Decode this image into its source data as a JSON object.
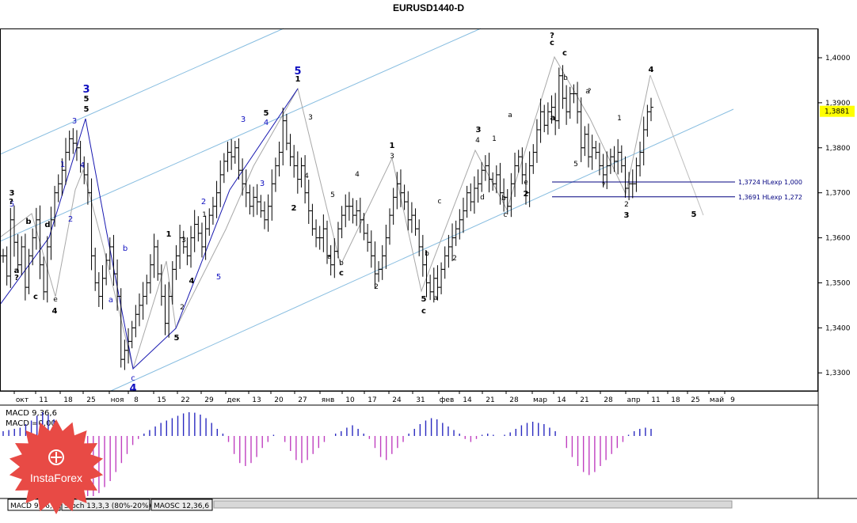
{
  "window": {
    "title": "EURUSD1440-D",
    "tabs": [
      "MACD 9,36,6",
      "Stoch 13,3,3 (80%-20%)",
      "MAOSC 12,36,6"
    ]
  },
  "logo_text": "InstaForex",
  "colors": {
    "bars": "#000000",
    "channel": "#87bde0",
    "wave_path": "#1818b0",
    "forecast": "#bdbdbd",
    "level_line": "#000080",
    "macd_positive": "#2a2ac0",
    "macd_negative": "#c040c0",
    "price_badge": "#ffff00",
    "logo": "#e84a45"
  },
  "chart_data": {
    "type": "ohlc",
    "title": "EURUSD1440-D",
    "ylim": [
      1.326,
      1.4065
    ],
    "y_ticks": [
      "1,4000",
      "1,3900",
      "1,3800",
      "1,3700",
      "1,3600",
      "1,3500",
      "1,3400",
      "1,3300"
    ],
    "x_ticks": [
      "окт",
      "11",
      "18",
      "25",
      "ноя",
      "8",
      "15",
      "22",
      "29",
      "дек",
      "13",
      "20",
      "27",
      "янв",
      "10",
      "17",
      "24",
      "31",
      "фев",
      "14",
      "21",
      "28",
      "мар",
      "14",
      "21",
      "28",
      "апр",
      "11",
      "18",
      "25",
      "май",
      "9"
    ],
    "current_price": "1,3881",
    "levels": [
      {
        "value": 1.3724,
        "label": "1,3724 HLexp 1,000"
      },
      {
        "value": 1.3691,
        "label": "1,3691 HLexp 1,272"
      }
    ],
    "closes": [
      1.356,
      1.3515,
      1.364,
      1.359,
      1.354,
      1.358,
      1.349,
      1.356,
      1.36,
      1.364,
      1.354,
      1.348,
      1.358,
      1.364,
      1.37,
      1.372,
      1.375,
      1.379,
      1.382,
      1.381,
      1.38,
      1.376,
      1.374,
      1.37,
      1.356,
      1.35,
      1.347,
      1.351,
      1.355,
      1.358,
      1.352,
      1.347,
      1.333,
      1.335,
      1.337,
      1.34,
      1.343,
      1.345,
      1.347,
      1.35,
      1.354,
      1.358,
      1.352,
      1.347,
      1.341,
      1.347,
      1.353,
      1.356,
      1.36,
      1.358,
      1.356,
      1.36,
      1.363,
      1.361,
      1.358,
      1.362,
      1.365,
      1.367,
      1.37,
      1.374,
      1.377,
      1.379,
      1.378,
      1.38,
      1.375,
      1.372,
      1.37,
      1.367,
      1.369,
      1.368,
      1.366,
      1.364,
      1.367,
      1.372,
      1.376,
      1.379,
      1.386,
      1.381,
      1.378,
      1.376,
      1.373,
      1.376,
      1.37,
      1.366,
      1.362,
      1.36,
      1.36,
      1.362,
      1.356,
      1.354,
      1.357,
      1.362,
      1.365,
      1.367,
      1.367,
      1.365,
      1.366,
      1.364,
      1.361,
      1.359,
      1.356,
      1.352,
      1.353,
      1.356,
      1.36,
      1.365,
      1.369,
      1.372,
      1.37,
      1.368,
      1.364,
      1.365,
      1.362,
      1.358,
      1.354,
      1.35,
      1.348,
      1.351,
      1.349,
      1.353,
      1.356,
      1.358,
      1.36,
      1.362,
      1.364,
      1.366,
      1.37,
      1.368,
      1.371,
      1.372,
      1.375,
      1.376,
      1.373,
      1.372,
      1.374,
      1.37,
      1.369,
      1.367,
      1.372,
      1.376,
      1.378,
      1.374,
      1.37,
      1.376,
      1.379,
      1.384,
      1.388,
      1.385,
      1.388,
      1.389,
      1.386,
      1.396,
      1.391,
      1.388,
      1.392,
      1.392,
      1.388,
      1.38,
      1.383,
      1.378,
      1.38,
      1.379,
      1.376,
      1.374,
      1.376,
      1.378,
      1.377,
      1.379,
      1.376,
      1.371,
      1.372,
      1.372,
      1.376,
      1.379,
      1.384,
      1.388,
      1.389
    ]
  },
  "waves": {
    "big": [
      {
        "t": "3",
        "c": "blue"
      },
      {
        "t": "5",
        "c": "blue"
      },
      {
        "t": "4",
        "c": "blue"
      }
    ],
    "labels": [
      "3",
      "5",
      "b",
      "a",
      "c",
      "d",
      "e",
      "4",
      "3",
      "5",
      "5",
      "1",
      "2",
      "4",
      "b",
      "a",
      "c",
      "4",
      "1",
      "3",
      "2",
      "4",
      "5",
      "1",
      "2",
      "5",
      "3",
      "3",
      "5",
      "4",
      "1",
      "2",
      "4",
      "3",
      "5",
      "a",
      "b",
      "c",
      "4",
      "2",
      "1",
      "3",
      "5",
      "a",
      "b",
      "c",
      "2",
      "3",
      "4",
      "1",
      "d",
      "a",
      "b",
      "e",
      "c",
      "2",
      "c",
      "a",
      "?",
      "c",
      "b",
      "a",
      "5",
      "?",
      "1",
      "2",
      "3",
      "4",
      "5",
      "c",
      "?",
      "?",
      "?",
      "3",
      "2"
    ]
  },
  "indicator": {
    "line1": "MACD 9,36,6",
    "line2": "MACD =0,00",
    "hist": [
      0.2,
      0.25,
      0.3,
      0.35,
      0.5,
      0.65,
      0.85,
      1.0,
      0.9,
      0.7,
      0.4,
      0.1,
      -0.2,
      -0.5,
      -0.8,
      -1.0,
      -1.0,
      -0.95,
      -0.85,
      -0.75,
      -0.6,
      -0.45,
      -0.3,
      -0.15,
      -0.05,
      0.1,
      0.25,
      0.4,
      0.55,
      0.65,
      0.75,
      0.85,
      0.95,
      1.0,
      0.98,
      0.9,
      0.75,
      0.55,
      0.3,
      0.1,
      -0.1,
      -0.3,
      -0.45,
      -0.5,
      -0.45,
      -0.35,
      -0.2,
      -0.1,
      0.05,
      0.0,
      -0.1,
      -0.25,
      -0.4,
      -0.45,
      -0.4,
      -0.3,
      -0.2,
      -0.1,
      0.0,
      0.1,
      0.2,
      0.35,
      0.45,
      0.3,
      0.1,
      -0.05,
      -0.2,
      -0.35,
      -0.4,
      -0.3,
      -0.2,
      -0.1,
      0.1,
      0.3,
      0.5,
      0.65,
      0.75,
      0.7,
      0.55,
      0.4,
      0.25,
      0.1,
      -0.05,
      -0.1,
      -0.05,
      0.05,
      0.1,
      0.05,
      0.0,
      0.05,
      0.15,
      0.3,
      0.45,
      0.55,
      0.6,
      0.55,
      0.5,
      0.35,
      0.2,
      0.0,
      -0.2,
      -0.35,
      -0.5,
      -0.6,
      -0.65,
      -0.6,
      -0.5,
      -0.4,
      -0.3,
      -0.2,
      -0.1,
      0.05,
      0.2,
      0.3,
      0.35,
      0.3
    ]
  }
}
